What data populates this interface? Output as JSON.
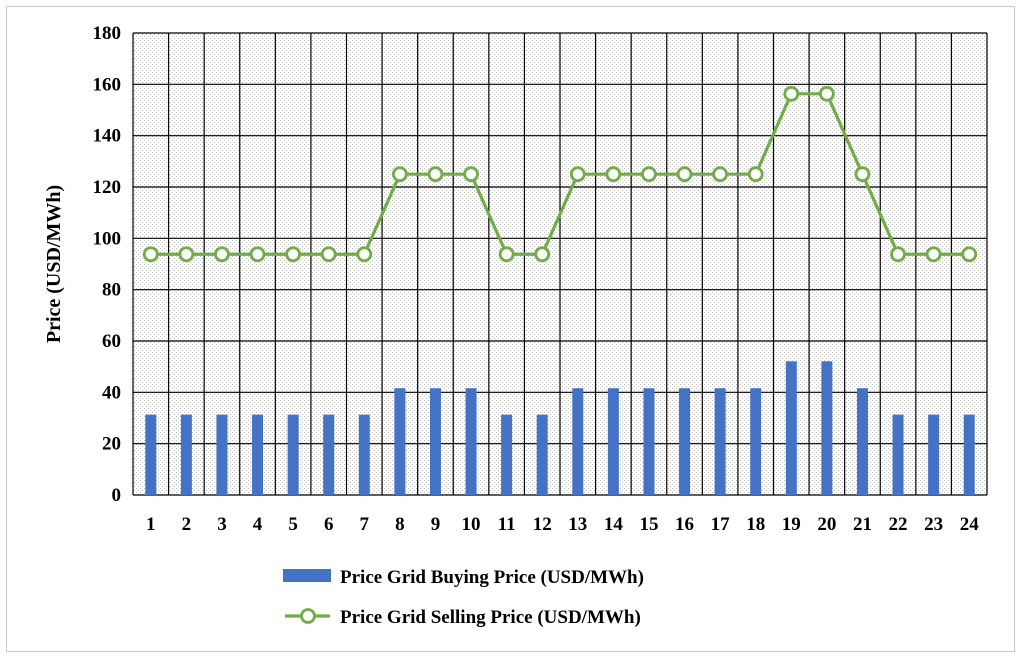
{
  "chart_data": {
    "type": "bar",
    "title": "",
    "xlabel": "",
    "ylabel": "Price (USD/MWh)",
    "ylim": [
      0,
      180
    ],
    "yticks": [
      0,
      20,
      40,
      60,
      80,
      100,
      120,
      140,
      160,
      180
    ],
    "grid": true,
    "legend_position": "bottom",
    "categories": [
      "1",
      "2",
      "3",
      "4",
      "5",
      "6",
      "7",
      "8",
      "9",
      "10",
      "11",
      "12",
      "13",
      "14",
      "15",
      "16",
      "17",
      "18",
      "19",
      "20",
      "21",
      "22",
      "23",
      "24"
    ],
    "series": [
      {
        "name": "Price Grid Buying Price (USD/MWh)",
        "kind": "bar",
        "color": "#4472c4",
        "values": [
          31.3,
          31.3,
          31.3,
          31.3,
          31.3,
          31.3,
          31.3,
          41.6,
          41.6,
          41.6,
          31.3,
          31.3,
          41.6,
          41.6,
          41.6,
          41.6,
          41.6,
          41.6,
          52.1,
          52.1,
          41.6,
          31.3,
          31.3,
          31.3
        ]
      },
      {
        "name": "Price Grid Selling Price (USD/MWh)",
        "kind": "line",
        "color": "#70ad47",
        "values": [
          93.8,
          93.8,
          93.8,
          93.8,
          93.8,
          93.8,
          93.8,
          125,
          125,
          125,
          93.8,
          93.8,
          125,
          125,
          125,
          125,
          125,
          125,
          156.3,
          156.3,
          125,
          93.8,
          93.8,
          93.8
        ]
      }
    ]
  }
}
